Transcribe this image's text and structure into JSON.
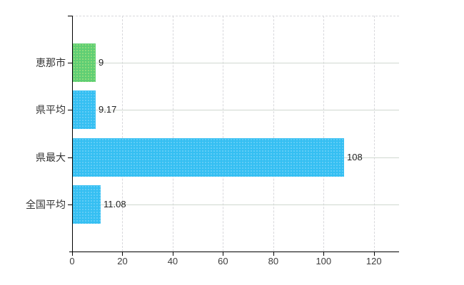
{
  "chart_data": {
    "type": "bar",
    "orientation": "horizontal",
    "title": "",
    "xlabel": "",
    "ylabel": "",
    "categories": [
      "恵那市",
      "県平均",
      "県最大",
      "全国平均"
    ],
    "values": [
      9,
      9.17,
      108,
      11.08
    ],
    "value_labels": [
      "9",
      "9.17",
      "108",
      "11.08"
    ],
    "series_colors": [
      "#5FCE74",
      "#35BFF2",
      "#35BFF2",
      "#35BFF2"
    ],
    "bar_color_classes": [
      "green",
      "blue",
      "blue",
      "blue"
    ],
    "x_ticks": [
      0,
      20,
      40,
      60,
      80,
      100,
      120
    ],
    "x_tick_labels": [
      "0",
      "20",
      "40",
      "60",
      "80",
      "100",
      "120"
    ],
    "xlim": [
      0,
      130
    ],
    "legend": "none",
    "grid": {
      "vertical_style": "dashed",
      "horizontal_style": "solid",
      "top_border_style": "dashed",
      "vertical_color": "#D8D8DC",
      "horizontal_color": "#D0D8D0"
    },
    "axis_color": "#000000",
    "background_color": "#FFFFFF",
    "label_color": "#333333",
    "value_label_color": "#222222",
    "tick_label_color": "#3D3D3D"
  }
}
